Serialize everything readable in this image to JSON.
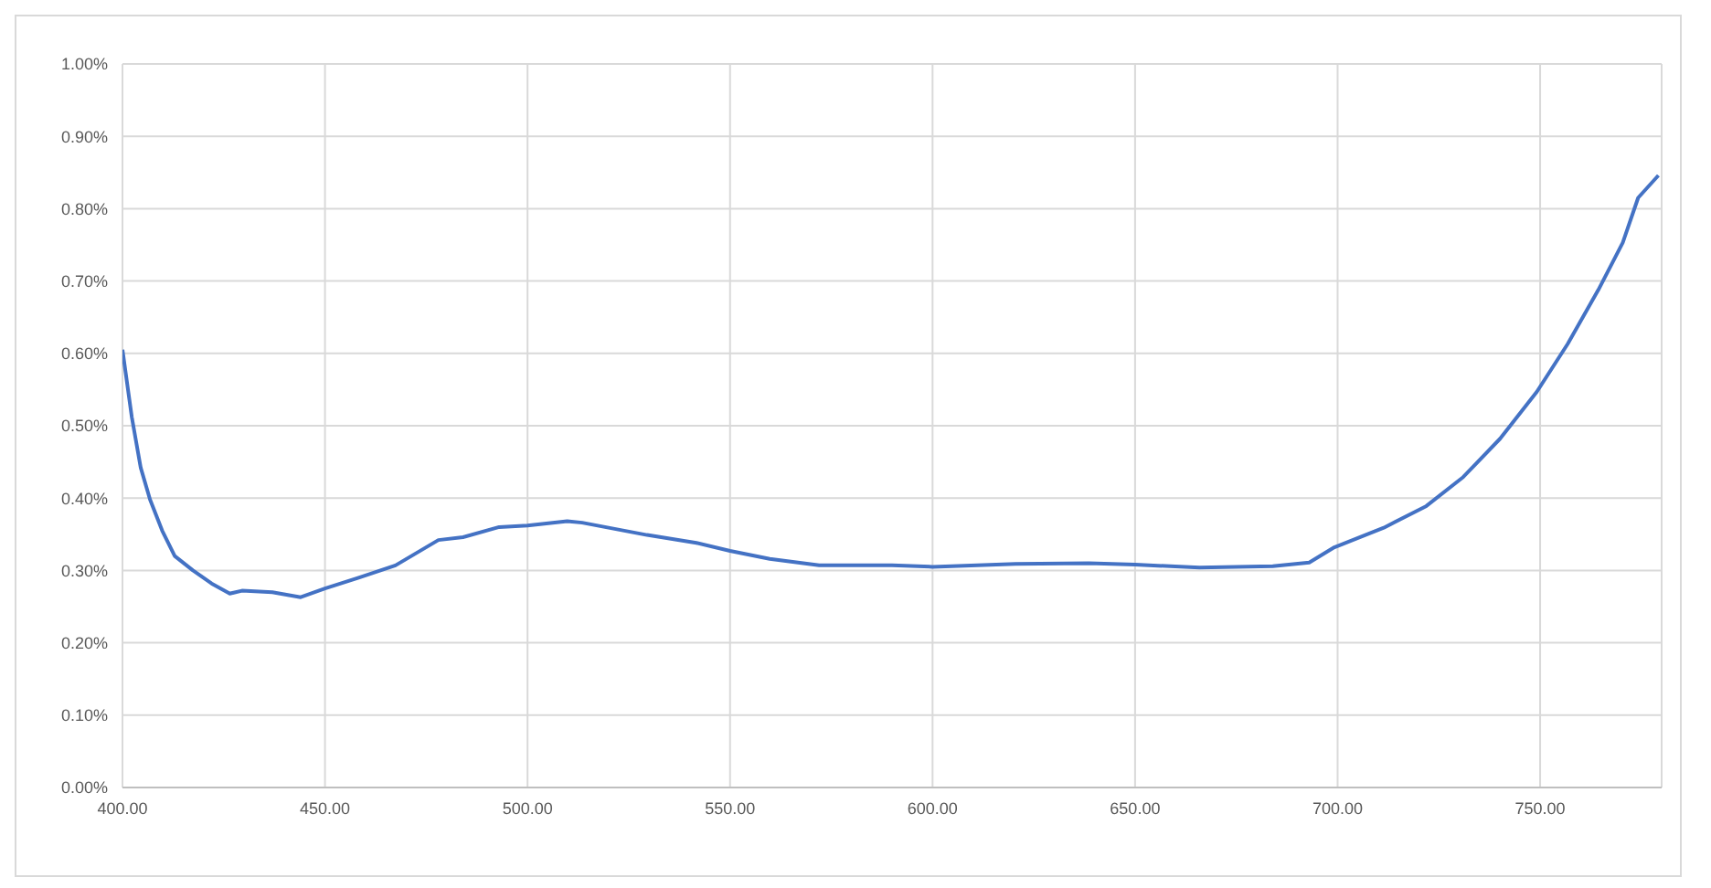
{
  "chart_data": {
    "type": "line",
    "x": [
      400,
      402.3,
      404.5,
      406.8,
      409.8,
      412.9,
      417.4,
      422,
      426.5,
      429.5,
      437,
      444,
      450,
      458.3,
      467.4,
      478,
      484.1,
      493,
      500,
      509.8,
      513.5,
      529.5,
      541.7,
      550,
      559.8,
      572,
      590,
      600,
      620.5,
      638.6,
      650,
      665.9,
      684,
      693,
      699.2,
      711.4,
      721.9,
      731,
      740.1,
      749.2,
      756.8,
      764.4,
      770.4,
      774.2,
      779.2
    ],
    "series": [
      {
        "color": "#4472c4",
        "values": [
          0.605,
          0.512,
          0.442,
          0.398,
          0.355,
          0.32,
          0.3,
          0.282,
          0.268,
          0.272,
          0.27,
          0.263,
          0.275,
          0.29,
          0.307,
          0.342,
          0.346,
          0.36,
          0.362,
          0.368,
          0.366,
          0.349,
          0.338,
          0.327,
          0.316,
          0.307,
          0.307,
          0.305,
          0.309,
          0.31,
          0.308,
          0.304,
          0.306,
          0.311,
          0.332,
          0.359,
          0.389,
          0.429,
          0.482,
          0.547,
          0.613,
          0.688,
          0.753,
          0.815,
          0.846
        ]
      }
    ],
    "xlim": [
      400,
      780
    ],
    "xticks": [
      {
        "value": 400,
        "label": "400.00"
      },
      {
        "value": 450,
        "label": "450.00"
      },
      {
        "value": 500,
        "label": "500.00"
      },
      {
        "value": 550,
        "label": "550.00"
      },
      {
        "value": 600,
        "label": "600.00"
      },
      {
        "value": 650,
        "label": "650.00"
      },
      {
        "value": 700,
        "label": "700.00"
      },
      {
        "value": 750,
        "label": "750.00"
      }
    ],
    "ylim": [
      0,
      1
    ],
    "yticks": [
      {
        "value": 0,
        "label": "0.00%"
      },
      {
        "value": 0.1,
        "label": "0.10%"
      },
      {
        "value": 0.2,
        "label": "0.20%"
      },
      {
        "value": 0.3,
        "label": "0.30%"
      },
      {
        "value": 0.4,
        "label": "0.40%"
      },
      {
        "value": 0.5,
        "label": "0.50%"
      },
      {
        "value": 0.6,
        "label": "0.60%"
      },
      {
        "value": 0.7,
        "label": "0.70%"
      },
      {
        "value": 0.8,
        "label": "0.80%"
      },
      {
        "value": 0.9,
        "label": "0.90%"
      },
      {
        "value": 1,
        "label": "1.00%"
      }
    ],
    "grid": true,
    "marker": "none",
    "line_style": "solid"
  }
}
